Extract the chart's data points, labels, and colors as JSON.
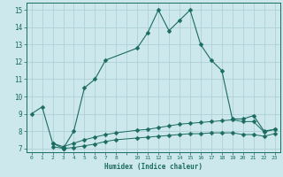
{
  "xlabel": "Humidex (Indice chaleur)",
  "xlim": [
    -0.5,
    23.5
  ],
  "ylim": [
    6.8,
    15.4
  ],
  "yticks": [
    7,
    8,
    9,
    10,
    11,
    12,
    13,
    14,
    15
  ],
  "xtick_labels": [
    "0",
    "1",
    "2",
    "3",
    "4",
    "5",
    "6",
    "7",
    "8",
    "1011",
    "12",
    "13",
    "14",
    "15",
    "16",
    "17",
    "18",
    "19",
    "20",
    "21",
    "2223",
    "",
    ""
  ],
  "bg_color": "#cce8ec",
  "grid_color": "#aaccd4",
  "line_color": "#1a6b60",
  "upper_x": [
    0,
    1,
    2,
    3,
    4,
    5,
    6,
    7,
    10,
    11,
    12,
    13,
    14,
    15,
    16,
    17,
    18,
    19,
    20,
    21,
    22,
    23
  ],
  "upper_y": [
    9.0,
    9.4,
    7.3,
    7.0,
    8.0,
    10.5,
    11.0,
    12.1,
    12.8,
    13.7,
    15.0,
    13.8,
    14.4,
    15.0,
    13.0,
    12.1,
    11.5,
    8.7,
    8.7,
    8.9,
    8.0,
    8.1
  ],
  "mid_x": [
    2,
    3,
    4,
    5,
    6,
    7,
    8,
    10,
    11,
    12,
    13,
    14,
    15,
    16,
    17,
    18,
    19,
    20,
    21,
    22,
    23
  ],
  "mid_y": [
    7.3,
    7.1,
    7.3,
    7.5,
    7.65,
    7.8,
    7.9,
    8.05,
    8.1,
    8.2,
    8.3,
    8.4,
    8.45,
    8.5,
    8.55,
    8.6,
    8.65,
    8.55,
    8.55,
    7.95,
    8.1
  ],
  "lower_x": [
    2,
    3,
    4,
    5,
    6,
    7,
    8,
    10,
    11,
    12,
    13,
    14,
    15,
    16,
    17,
    18,
    19,
    20,
    21,
    22,
    23
  ],
  "lower_y": [
    7.1,
    7.0,
    7.05,
    7.15,
    7.25,
    7.4,
    7.5,
    7.6,
    7.65,
    7.7,
    7.75,
    7.8,
    7.85,
    7.85,
    7.9,
    7.9,
    7.9,
    7.8,
    7.8,
    7.7,
    7.85
  ]
}
